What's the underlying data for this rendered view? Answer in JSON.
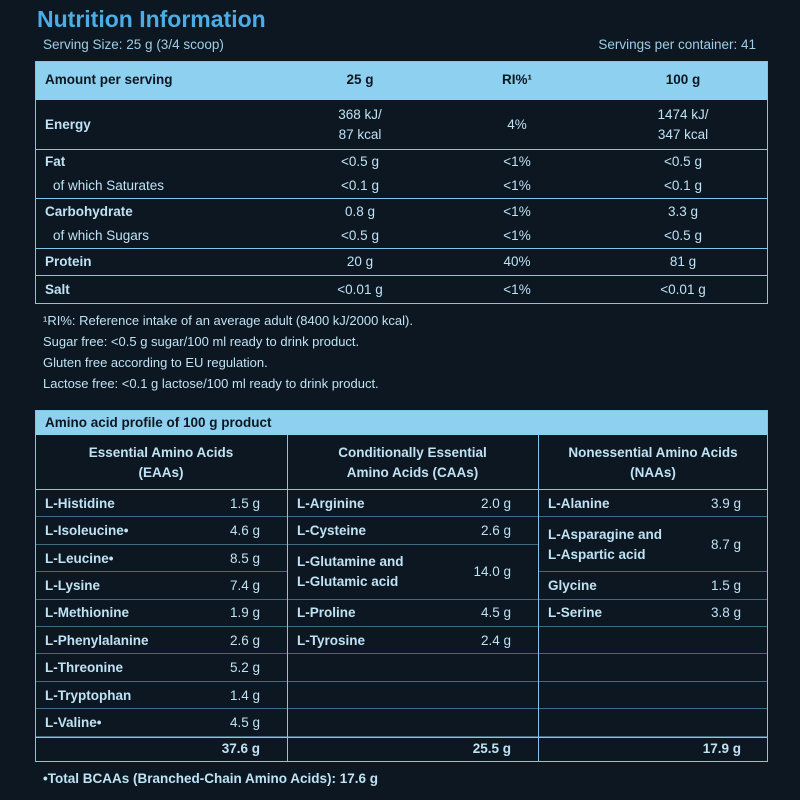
{
  "header": {
    "title": "Nutrition Information",
    "serving_size": "Serving Size: 25 g (3/4 scoop)",
    "servings_per_container": "Servings per container: 41"
  },
  "nutrition_table": {
    "columns": [
      "Amount per serving",
      "25 g",
      "RI%¹",
      "100 g"
    ],
    "groups": [
      [
        {
          "label": "Energy",
          "per_25g": [
            "368 kJ/",
            "87 kcal"
          ],
          "ri": "4%",
          "per_100g": [
            "1474 kJ/",
            "347 kcal"
          ]
        }
      ],
      [
        {
          "label": "Fat",
          "per_25g": "<0.5 g",
          "ri": "<1%",
          "per_100g": "<0.5 g"
        },
        {
          "label": "of which Saturates",
          "per_25g": "<0.1 g",
          "ri": "<1%",
          "per_100g": "<0.1 g"
        }
      ],
      [
        {
          "label": "Carbohydrate",
          "per_25g": "0.8 g",
          "ri": "<1%",
          "per_100g": "3.3 g"
        },
        {
          "label": "of which Sugars",
          "per_25g": "<0.5 g",
          "ri": "<1%",
          "per_100g": "<0.5 g"
        }
      ],
      [
        {
          "label": "Protein",
          "per_25g": "20 g",
          "ri": "40%",
          "per_100g": "81 g"
        }
      ],
      [
        {
          "label": "Salt",
          "per_25g": "<0.01 g",
          "ri": "<1%",
          "per_100g": "<0.01 g"
        }
      ]
    ]
  },
  "notes": [
    "¹RI%: Reference intake of an average adult (8400 kJ/2000 kcal).",
    "Sugar free: <0.5 g sugar/100 ml ready to drink product.",
    "Gluten free according to EU regulation.",
    "Lactose free: <0.1 g lactose/100 ml ready to drink product."
  ],
  "amino_profile": {
    "title": "Amino acid profile of 100 g product",
    "columns": [
      {
        "heading": [
          "Essential Amino Acids",
          "(EAAs)"
        ],
        "items": [
          {
            "name": [
              "L-Histidine"
            ],
            "value": "1.5 g"
          },
          {
            "name": [
              "L-Isoleucine•"
            ],
            "value": "4.6 g"
          },
          {
            "name": [
              "L-Leucine•"
            ],
            "value": "8.5 g"
          },
          {
            "name": [
              "L-Lysine"
            ],
            "value": "7.4 g"
          },
          {
            "name": [
              "L-Methionine"
            ],
            "value": "1.9 g"
          },
          {
            "name": [
              "L-Phenylalanine"
            ],
            "value": "2.6 g"
          },
          {
            "name": [
              "L-Threonine"
            ],
            "value": "5.2 g"
          },
          {
            "name": [
              "L-Tryptophan"
            ],
            "value": "1.4 g"
          },
          {
            "name": [
              "L-Valine•"
            ],
            "value": "4.5 g"
          }
        ],
        "total": "37.6 g"
      },
      {
        "heading": [
          "Conditionally Essential",
          "Amino Acids (CAAs)"
        ],
        "items": [
          {
            "name": [
              "L-Arginine"
            ],
            "value": "2.0 g"
          },
          {
            "name": [
              "L-Cysteine"
            ],
            "value": "2.6 g"
          },
          {
            "name": [
              "L-Glutamine and",
              "L-Glutamic acid"
            ],
            "value": "14.0 g"
          },
          {
            "name": [
              "L-Proline"
            ],
            "value": "4.5 g"
          },
          {
            "name": [
              "L-Tyrosine"
            ],
            "value": "2.4 g"
          }
        ],
        "total": "25.5 g"
      },
      {
        "heading": [
          "Nonessential Amino Acids",
          "(NAAs)"
        ],
        "items": [
          {
            "name": [
              "L-Alanine"
            ],
            "value": "3.9 g"
          },
          {
            "name": [
              "L-Asparagine and",
              "L-Aspartic acid"
            ],
            "value": "8.7 g"
          },
          {
            "name": [
              "Glycine"
            ],
            "value": "1.5 g"
          },
          {
            "name": [
              "L-Serine"
            ],
            "value": "3.8 g"
          }
        ],
        "total": "17.9 g"
      }
    ]
  },
  "footer": "•Total BCAAs (Branched-Chain Amino Acids): 17.6 g"
}
